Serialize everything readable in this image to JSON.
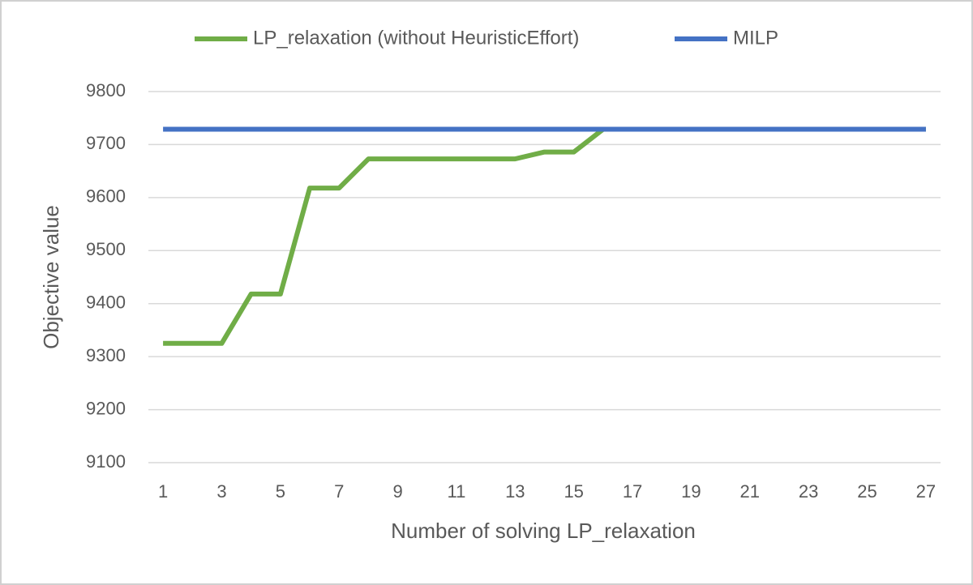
{
  "chart_data": {
    "type": "line",
    "x_label": "Number of solving LP_relaxation",
    "y_label": "Objective value",
    "categories": [
      1,
      null,
      3,
      null,
      5,
      null,
      7,
      null,
      9,
      null,
      11,
      null,
      13,
      null,
      15,
      null,
      17,
      null,
      19,
      null,
      21,
      null,
      23,
      null,
      25,
      null,
      27
    ],
    "series": [
      {
        "name": "LP_relaxation (without HeuristicEffort)",
        "color": "#70ad47",
        "values": [
          9325,
          9325,
          9325,
          9418,
          9418,
          9618,
          9618,
          9673,
          9673,
          9673,
          9673,
          9673,
          9673,
          9686,
          9686,
          9729,
          9729,
          9729,
          9729,
          9729,
          9729,
          9729,
          9729,
          9729,
          9729,
          9729,
          9729
        ]
      },
      {
        "name": "MILP",
        "color": "#4472c4",
        "values": [
          9729,
          9729,
          9729,
          9729,
          9729,
          9729,
          9729,
          9729,
          9729,
          9729,
          9729,
          9729,
          9729,
          9729,
          9729,
          9729,
          9729,
          9729,
          9729,
          9729,
          9729,
          9729,
          9729,
          9729,
          9729,
          9729,
          9729
        ]
      }
    ],
    "ylim": [
      9100,
      9800
    ],
    "yticks": [
      9100,
      9200,
      9300,
      9400,
      9500,
      9600,
      9700,
      9800
    ],
    "grid": true,
    "legend": "top"
  }
}
